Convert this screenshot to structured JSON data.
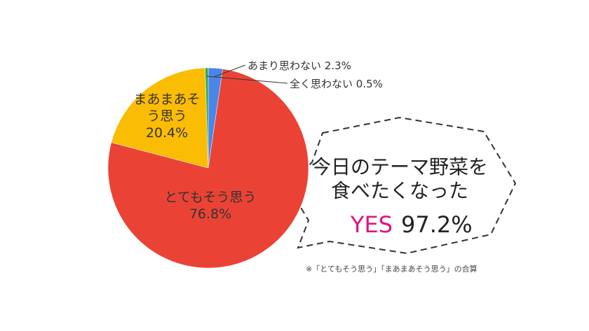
{
  "chart_data": {
    "type": "pie",
    "categories": [
      "あまり思わない",
      "とてもそう思う",
      "まあまあそう思う",
      "全く思わない"
    ],
    "values": [
      2.3,
      76.8,
      20.4,
      0.5
    ],
    "value_labels": [
      "2.3%",
      "76.8%",
      "20.4%",
      "0.5%"
    ],
    "colors": [
      "#4a86e8",
      "#ea4335",
      "#fbbc04",
      "#34a853"
    ]
  },
  "callout": {
    "lines": [
      "今日のテーマ野菜を",
      "食べたくなった"
    ],
    "highlight": "YES",
    "value": "97.2%"
  },
  "note": "※「とてもそう思う」「まあまあそう思う」の合算"
}
